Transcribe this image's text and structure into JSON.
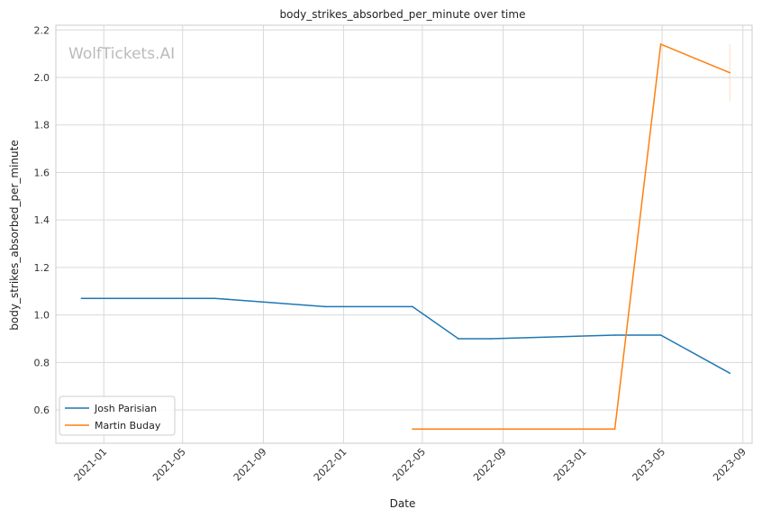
{
  "chart_data": {
    "type": "line",
    "title": "body_strikes_absorbed_per_minute over time",
    "xlabel": "Date",
    "ylabel": "body_strikes_absorbed_per_minute",
    "watermark": "WolfTickets.AI",
    "xlim": [
      "2020-10-20",
      "2023-09-15"
    ],
    "ylim": [
      0.46,
      2.22
    ],
    "x_ticks": [
      "2021-01",
      "2021-05",
      "2021-09",
      "2022-01",
      "2022-05",
      "2022-09",
      "2023-01",
      "2023-05",
      "2023-09"
    ],
    "y_ticks": [
      0.6,
      0.8,
      1.0,
      1.2,
      1.4,
      1.6,
      1.8,
      2.0,
      2.2
    ],
    "y_tick_labels": [
      "0.6",
      "0.8",
      "1.0",
      "1.2",
      "1.4",
      "1.6",
      "1.8",
      "2.0",
      "2.2"
    ],
    "grid": true,
    "legend_position": "lower-left",
    "series": [
      {
        "name": "Josh Parisian",
        "color": "#1f77b4",
        "points": [
          {
            "x": "2020-11-28",
            "y": 1.07
          },
          {
            "x": "2021-06-19",
            "y": 1.07
          },
          {
            "x": "2021-12-04",
            "y": 1.035
          },
          {
            "x": "2022-04-16",
            "y": 1.035
          },
          {
            "x": "2022-06-25",
            "y": 0.9
          },
          {
            "x": "2022-08-13",
            "y": 0.9
          },
          {
            "x": "2023-02-18",
            "y": 0.915
          },
          {
            "x": "2023-04-29",
            "y": 0.915
          },
          {
            "x": "2023-08-12",
            "y": 0.755
          }
        ]
      },
      {
        "name": "Martin Buday",
        "color": "#ff7f0e",
        "points": [
          {
            "x": "2022-04-16",
            "y": 0.52
          },
          {
            "x": "2023-02-18",
            "y": 0.52
          },
          {
            "x": "2023-04-29",
            "y": 2.14
          },
          {
            "x": "2023-08-12",
            "y": 2.02
          }
        ],
        "error_band": {
          "x": "2023-08-12",
          "low": 1.9,
          "high": 2.14
        }
      }
    ]
  }
}
